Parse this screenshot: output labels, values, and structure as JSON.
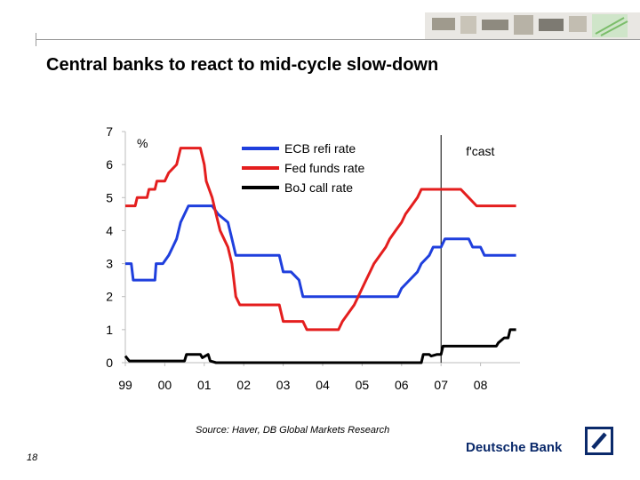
{
  "header": {
    "title": "Central banks to react to mid-cycle slow-down"
  },
  "footer": {
    "source": "Source: Haver, DB Global Markets Research",
    "page_number": "18",
    "brand": "Deutsche Bank"
  },
  "colors": {
    "ecb": "#1f3fdd",
    "fed": "#e41e1e",
    "boj": "#000000",
    "brand_blue": "#0b2a6b",
    "rule": "#9a9a9a"
  },
  "chart_data": {
    "type": "line",
    "title": "Central banks to react to mid-cycle slow-down",
    "ylabel": "%",
    "xlim": [
      1999,
      2009
    ],
    "ylim": [
      0,
      7
    ],
    "x_ticks": [
      "99",
      "00",
      "01",
      "02",
      "03",
      "04",
      "05",
      "06",
      "07",
      "08"
    ],
    "y_ticks": [
      "0",
      "1",
      "2",
      "3",
      "4",
      "5",
      "6",
      "7"
    ],
    "grid": false,
    "legend_position": "top-center",
    "annotations": [
      {
        "text": "f'cast",
        "x": 2007.0
      }
    ],
    "series": [
      {
        "name": "ECB refi rate",
        "color": "#1f3fdd",
        "points": [
          [
            1999.0,
            3.0
          ],
          [
            1999.15,
            3.0
          ],
          [
            1999.2,
            2.5
          ],
          [
            1999.75,
            2.5
          ],
          [
            1999.78,
            3.0
          ],
          [
            1999.95,
            3.0
          ],
          [
            2000.1,
            3.25
          ],
          [
            2000.2,
            3.5
          ],
          [
            2000.3,
            3.75
          ],
          [
            2000.4,
            4.25
          ],
          [
            2000.5,
            4.5
          ],
          [
            2000.6,
            4.75
          ],
          [
            2000.75,
            4.75
          ],
          [
            2000.8,
            4.75
          ],
          [
            2001.2,
            4.75
          ],
          [
            2001.35,
            4.5
          ],
          [
            2001.6,
            4.25
          ],
          [
            2001.7,
            3.75
          ],
          [
            2001.8,
            3.25
          ],
          [
            2002.0,
            3.25
          ],
          [
            2002.9,
            3.25
          ],
          [
            2003.0,
            2.75
          ],
          [
            2003.2,
            2.75
          ],
          [
            2003.4,
            2.5
          ],
          [
            2003.5,
            2.0
          ],
          [
            2005.9,
            2.0
          ],
          [
            2006.0,
            2.25
          ],
          [
            2006.2,
            2.5
          ],
          [
            2006.4,
            2.75
          ],
          [
            2006.5,
            3.0
          ],
          [
            2006.7,
            3.25
          ],
          [
            2006.8,
            3.5
          ],
          [
            2007.0,
            3.5
          ],
          [
            2007.1,
            3.75
          ],
          [
            2007.7,
            3.75
          ],
          [
            2007.8,
            3.5
          ],
          [
            2008.0,
            3.5
          ],
          [
            2008.1,
            3.25
          ],
          [
            2008.9,
            3.25
          ]
        ]
      },
      {
        "name": "Fed funds rate",
        "color": "#e41e1e",
        "points": [
          [
            1999.0,
            4.75
          ],
          [
            1999.25,
            4.75
          ],
          [
            1999.3,
            5.0
          ],
          [
            1999.55,
            5.0
          ],
          [
            1999.6,
            5.25
          ],
          [
            1999.75,
            5.25
          ],
          [
            1999.8,
            5.5
          ],
          [
            2000.0,
            5.5
          ],
          [
            2000.1,
            5.75
          ],
          [
            2000.3,
            6.0
          ],
          [
            2000.4,
            6.5
          ],
          [
            2000.9,
            6.5
          ],
          [
            2001.0,
            6.0
          ],
          [
            2001.05,
            5.5
          ],
          [
            2001.2,
            5.0
          ],
          [
            2001.3,
            4.5
          ],
          [
            2001.4,
            4.0
          ],
          [
            2001.5,
            3.75
          ],
          [
            2001.6,
            3.5
          ],
          [
            2001.7,
            3.0
          ],
          [
            2001.75,
            2.5
          ],
          [
            2001.8,
            2.0
          ],
          [
            2001.9,
            1.75
          ],
          [
            2002.9,
            1.75
          ],
          [
            2003.0,
            1.25
          ],
          [
            2003.5,
            1.25
          ],
          [
            2003.6,
            1.0
          ],
          [
            2004.4,
            1.0
          ],
          [
            2004.5,
            1.25
          ],
          [
            2004.65,
            1.5
          ],
          [
            2004.8,
            1.75
          ],
          [
            2004.9,
            2.0
          ],
          [
            2005.0,
            2.25
          ],
          [
            2005.1,
            2.5
          ],
          [
            2005.2,
            2.75
          ],
          [
            2005.3,
            3.0
          ],
          [
            2005.45,
            3.25
          ],
          [
            2005.6,
            3.5
          ],
          [
            2005.7,
            3.75
          ],
          [
            2005.85,
            4.0
          ],
          [
            2006.0,
            4.25
          ],
          [
            2006.1,
            4.5
          ],
          [
            2006.25,
            4.75
          ],
          [
            2006.4,
            5.0
          ],
          [
            2006.5,
            5.25
          ],
          [
            2007.5,
            5.25
          ],
          [
            2007.7,
            5.0
          ],
          [
            2007.9,
            4.75
          ],
          [
            2008.9,
            4.75
          ]
        ]
      },
      {
        "name": "BoJ call rate",
        "color": "#000000",
        "points": [
          [
            1999.0,
            0.2
          ],
          [
            1999.1,
            0.05
          ],
          [
            2000.5,
            0.05
          ],
          [
            2000.55,
            0.25
          ],
          [
            2000.9,
            0.25
          ],
          [
            2000.95,
            0.15
          ],
          [
            2001.1,
            0.25
          ],
          [
            2001.15,
            0.05
          ],
          [
            2001.3,
            0.0
          ],
          [
            2006.5,
            0.0
          ],
          [
            2006.55,
            0.25
          ],
          [
            2006.7,
            0.25
          ],
          [
            2006.75,
            0.2
          ],
          [
            2006.9,
            0.25
          ],
          [
            2007.0,
            0.25
          ],
          [
            2007.05,
            0.5
          ],
          [
            2008.4,
            0.5
          ],
          [
            2008.45,
            0.6
          ],
          [
            2008.6,
            0.75
          ],
          [
            2008.7,
            0.75
          ],
          [
            2008.75,
            1.0
          ],
          [
            2008.9,
            1.0
          ]
        ]
      }
    ]
  }
}
